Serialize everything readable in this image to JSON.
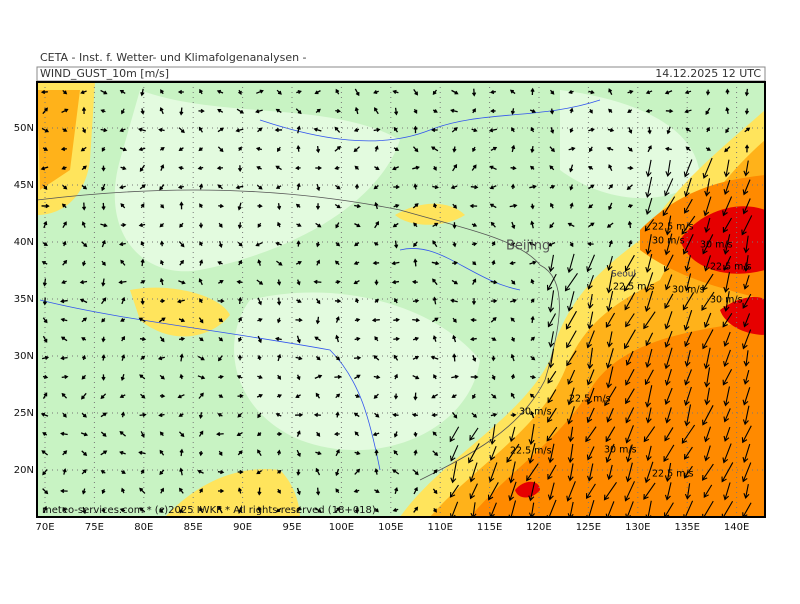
{
  "header": {
    "institute": "CETA - Inst. f. Wetter- und Klimafolgenanalysen -",
    "parameter": "WIND_GUST_10m [m/s]",
    "valid_time": "14.12.2025 12 UTC"
  },
  "map": {
    "lon_labels": [
      "70E",
      "75E",
      "80E",
      "85E",
      "90E",
      "95E",
      "100E",
      "105E",
      "110E",
      "115E",
      "120E",
      "125E",
      "130E",
      "135E",
      "140E"
    ],
    "lat_labels": [
      "50N",
      "45N",
      "40N",
      "35N",
      "30N",
      "25N",
      "20N"
    ],
    "cities": [
      "Beijing",
      "Seoul"
    ],
    "contour_labels": [
      "22.5 m/s",
      "30 m/s",
      "30 m/s",
      "22.5 m/s",
      "22.5 m/s",
      "30 m/s",
      "30 m/s",
      "22.5 m/s",
      "30 m/s",
      "22.5 m/s",
      "30 m/s",
      "22.5 m/s"
    ]
  },
  "footer": {
    "credit": "meteo-services.com * (c)2025 IWKF * All rights reserved (18+018)"
  }
}
